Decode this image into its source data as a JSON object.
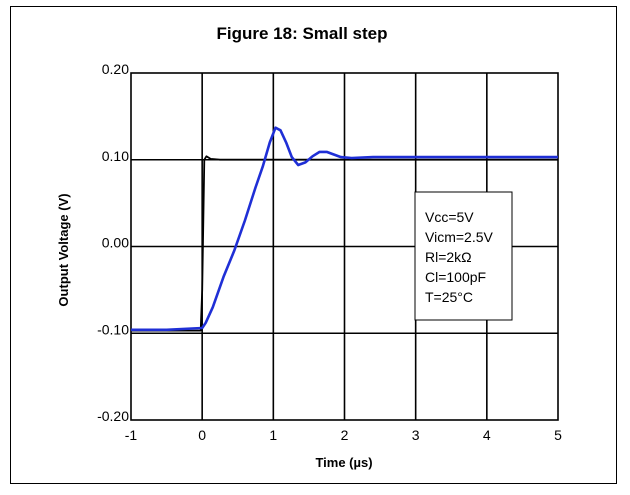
{
  "chart_data": {
    "type": "line",
    "title": "Figure 18: Small step",
    "xlabel": "Time (µs)",
    "ylabel": "Output Voltage (V)",
    "xlim": [
      -1,
      5
    ],
    "ylim": [
      -0.2,
      0.2
    ],
    "x_ticks": [
      -1,
      0,
      1,
      2,
      3,
      4,
      5
    ],
    "x_tick_labels": [
      "-1",
      "0",
      "1",
      "2",
      "3",
      "4",
      "5"
    ],
    "y_ticks": [
      -0.2,
      -0.1,
      0.0,
      0.1,
      0.2
    ],
    "y_tick_labels": [
      "-0.20",
      "-0.10",
      "0.00",
      "0.10",
      "0.20"
    ],
    "grid": true,
    "annotation_lines": [
      "Vcc=5V",
      "Vicm=2.5V",
      "Rl=2kΩ",
      "Cl=100pF",
      "T=25°C"
    ],
    "series": [
      {
        "color": "#000000",
        "x": [
          -1,
          -0.02,
          0,
          0.01,
          0.03,
          0.06,
          0.12,
          0.25,
          0.5,
          1,
          2,
          3,
          4,
          5
        ],
        "y": [
          -0.097,
          -0.097,
          -0.05,
          0.0,
          0.1,
          0.104,
          0.101,
          0.1,
          0.1,
          0.1,
          0.1,
          0.1,
          0.1,
          0.1
        ]
      },
      {
        "color": "#1f2fd6",
        "x": [
          -1,
          -0.5,
          0,
          0.05,
          0.15,
          0.3,
          0.45,
          0.6,
          0.75,
          0.85,
          0.95,
          1.03,
          1.1,
          1.18,
          1.26,
          1.35,
          1.45,
          1.55,
          1.65,
          1.75,
          1.85,
          1.95,
          2.1,
          2.4,
          3,
          4,
          5
        ],
        "y": [
          -0.096,
          -0.096,
          -0.094,
          -0.088,
          -0.07,
          -0.035,
          -0.005,
          0.03,
          0.068,
          0.092,
          0.12,
          0.137,
          0.134,
          0.12,
          0.103,
          0.094,
          0.097,
          0.104,
          0.109,
          0.109,
          0.106,
          0.103,
          0.102,
          0.103,
          0.103,
          0.103,
          0.103
        ]
      }
    ]
  }
}
